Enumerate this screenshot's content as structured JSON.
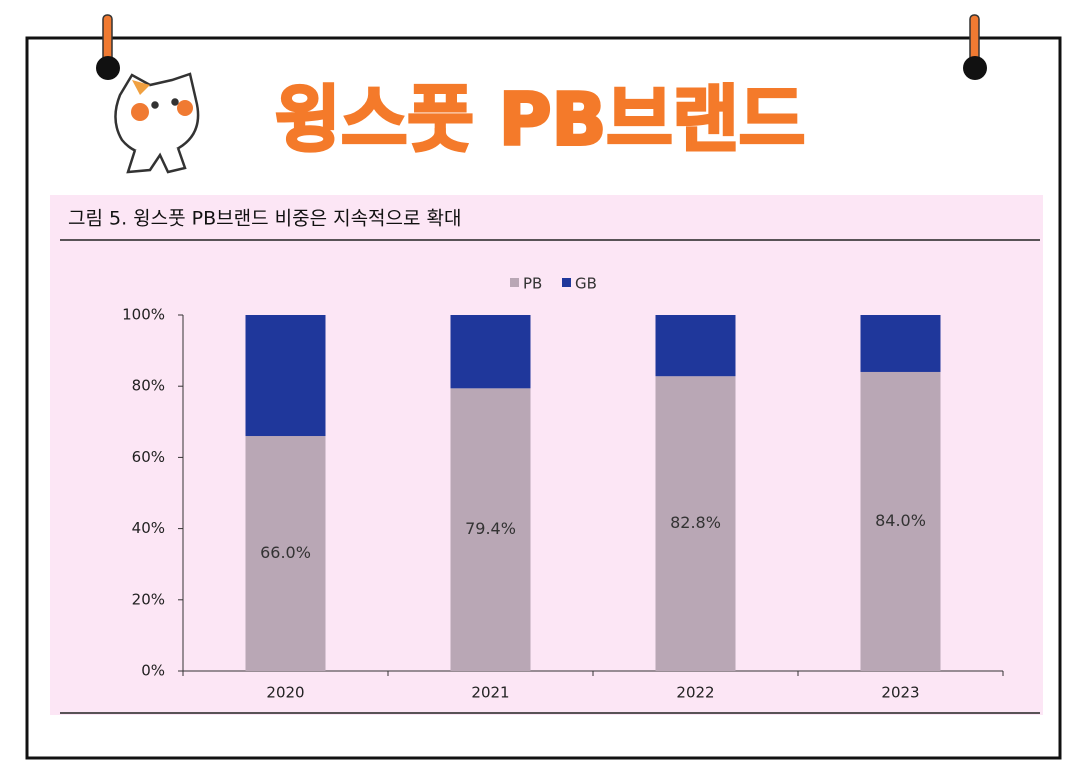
{
  "header": {
    "title": "윙스풋 PB브랜드"
  },
  "chart_data": {
    "type": "stacked_bar",
    "title": "그림 5. 윙스풋 PB브랜드 비중은 지속적으로 확대",
    "categories": [
      "2020",
      "2021",
      "2022",
      "2023"
    ],
    "series": [
      {
        "name": "PB",
        "color": "#b9a7b5",
        "values": [
          66.0,
          79.4,
          82.8,
          84.0
        ],
        "value_labels": [
          "66.0%",
          "79.4%",
          "82.8%",
          "84.0%"
        ]
      },
      {
        "name": "GB",
        "color": "#1f379b",
        "values": [
          34.0,
          20.6,
          17.2,
          16.0
        ]
      }
    ],
    "ylim": [
      0,
      100
    ],
    "yticks": [
      {
        "value": 0,
        "label": "0%"
      },
      {
        "value": 20,
        "label": "20%"
      },
      {
        "value": 40,
        "label": "40%"
      },
      {
        "value": 60,
        "label": "60%"
      },
      {
        "value": 80,
        "label": "80%"
      },
      {
        "value": 100,
        "label": "100%"
      }
    ],
    "legend": "top"
  }
}
